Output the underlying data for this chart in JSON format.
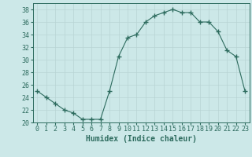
{
  "x": [
    0,
    1,
    2,
    3,
    4,
    5,
    6,
    7,
    8,
    9,
    10,
    11,
    12,
    13,
    14,
    15,
    16,
    17,
    18,
    19,
    20,
    21,
    22,
    23
  ],
  "y": [
    25,
    24,
    23,
    22,
    21.5,
    20.5,
    20.5,
    20.5,
    25,
    30.5,
    33.5,
    34,
    36,
    37,
    37.5,
    38,
    37.5,
    37.5,
    36,
    36,
    34.5,
    31.5,
    30.5,
    25
  ],
  "line_color": "#2d6b5e",
  "marker": "+",
  "marker_size": 4,
  "bg_color": "#cce8e8",
  "grid_color": "#b8d4d4",
  "xlabel": "Humidex (Indice chaleur)",
  "ylim": [
    20,
    39
  ],
  "xlim": [
    -0.5,
    23.5
  ],
  "yticks": [
    20,
    22,
    24,
    26,
    28,
    30,
    32,
    34,
    36,
    38
  ],
  "xticks": [
    0,
    1,
    2,
    3,
    4,
    5,
    6,
    7,
    8,
    9,
    10,
    11,
    12,
    13,
    14,
    15,
    16,
    17,
    18,
    19,
    20,
    21,
    22,
    23
  ],
  "font_size_label": 7,
  "font_size_tick": 6
}
